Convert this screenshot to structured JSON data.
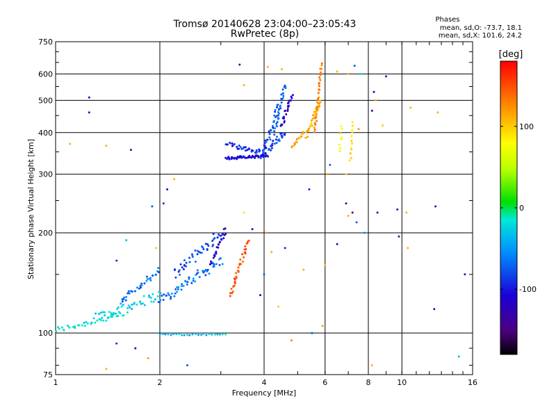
{
  "chart_data": {
    "type": "scatter",
    "title": "Tromsø 20140628 23:04:00–23:05:43",
    "subtitle": "RwPretec (8p)",
    "xlabel": "Frequency [MHz]",
    "ylabel": "Stationary phase Virtual Height [km]",
    "xscale": "log",
    "yscale": "log",
    "xlim": [
      1,
      16
    ],
    "ylim": [
      75,
      750
    ],
    "x_ticks": [
      1,
      2,
      4,
      6,
      8,
      10,
      16
    ],
    "x_tick_labels": [
      "1",
      "2",
      "4",
      "6",
      "8",
      "10",
      "16"
    ],
    "x_gridlines": [
      2,
      4,
      6,
      8,
      10
    ],
    "y_ticks": [
      75,
      100,
      200,
      300,
      400,
      500,
      600,
      750
    ],
    "y_tick_labels": [
      "75",
      "100",
      "200",
      "300",
      "400",
      "500",
      "600",
      "750"
    ],
    "y_gridlines": [
      100,
      200,
      300,
      400,
      500,
      600
    ],
    "grid": true,
    "stats": {
      "heading": "Phases",
      "line1": "mean, sd,O: -73.7, 18.1",
      "line2": "mean, sd,X: 101.6, 24.2"
    },
    "colorbar": {
      "label": "[deg]",
      "range": [
        -180,
        180
      ],
      "ticks": [
        100,
        0,
        -100
      ],
      "tick_labels": [
        "100",
        "0",
        "-100"
      ]
    },
    "traces": [
      {
        "f_start": 1.0,
        "f_end": 1.6,
        "h_start": 102,
        "h_end": 114,
        "phase": -45,
        "n": 40,
        "spread": 0.04
      },
      {
        "f_start": 1.3,
        "f_end": 2.0,
        "h_start": 112,
        "h_end": 130,
        "phase": -55,
        "n": 45,
        "spread": 0.06
      },
      {
        "f_start": 1.55,
        "f_end": 2.0,
        "h_start": 125,
        "h_end": 155,
        "phase": -85,
        "n": 35,
        "spread": 0.05
      },
      {
        "f_start": 2.0,
        "f_end": 3.0,
        "h_start": 125,
        "h_end": 165,
        "phase": -80,
        "n": 60,
        "spread": 0.06
      },
      {
        "f_start": 2.2,
        "f_end": 3.0,
        "h_start": 150,
        "h_end": 200,
        "phase": -95,
        "n": 45,
        "spread": 0.06
      },
      {
        "f_start": 2.8,
        "f_end": 3.1,
        "h_start": 160,
        "h_end": 205,
        "phase": -115,
        "n": 25,
        "spread": 0.03
      },
      {
        "f_start": 2.0,
        "f_end": 3.1,
        "h_start": 99,
        "h_end": 99,
        "phase": -60,
        "n": 25,
        "spread": 0.01
      },
      {
        "f_start": 3.2,
        "f_end": 3.6,
        "h_start": 130,
        "h_end": 190,
        "phase": 150,
        "n": 35,
        "spread": 0.03
      },
      {
        "f_start": 3.1,
        "f_end": 4.1,
        "h_start": 335,
        "h_end": 340,
        "phase": -110,
        "n": 60,
        "spread": 0.02
      },
      {
        "f_start": 3.1,
        "f_end": 3.9,
        "h_start": 370,
        "h_end": 350,
        "phase": -100,
        "n": 35,
        "spread": 0.03
      },
      {
        "f_start": 3.9,
        "f_end": 4.6,
        "h_start": 340,
        "h_end": 400,
        "phase": -95,
        "n": 40,
        "spread": 0.04
      },
      {
        "f_start": 4.0,
        "f_end": 4.4,
        "h_start": 350,
        "h_end": 480,
        "phase": -90,
        "n": 30,
        "spread": 0.04
      },
      {
        "f_start": 4.3,
        "f_end": 4.6,
        "h_start": 400,
        "h_end": 560,
        "phase": -85,
        "n": 30,
        "spread": 0.03
      },
      {
        "f_start": 4.5,
        "f_end": 4.8,
        "h_start": 420,
        "h_end": 520,
        "phase": -120,
        "n": 25,
        "spread": 0.03
      },
      {
        "f_start": 4.8,
        "f_end": 5.2,
        "h_start": 360,
        "h_end": 400,
        "phase": 120,
        "n": 15,
        "spread": 0.02
      },
      {
        "f_start": 5.3,
        "f_end": 5.8,
        "h_start": 390,
        "h_end": 500,
        "phase": 110,
        "n": 35,
        "spread": 0.03
      },
      {
        "f_start": 5.6,
        "f_end": 5.85,
        "h_start": 400,
        "h_end": 640,
        "phase": 130,
        "n": 40,
        "spread": 0.02
      },
      {
        "f_start": 7.1,
        "f_end": 7.2,
        "h_start": 330,
        "h_end": 430,
        "phase": 95,
        "n": 12,
        "spread": 0.02
      },
      {
        "f_start": 6.6,
        "f_end": 6.7,
        "h_start": 350,
        "h_end": 420,
        "phase": 80,
        "n": 8,
        "spread": 0.02
      }
    ],
    "scatter": [
      {
        "x": 1.25,
        "y": 510,
        "phase": -120
      },
      {
        "x": 1.25,
        "y": 460,
        "phase": -120
      },
      {
        "x": 1.1,
        "y": 370,
        "phase": 110
      },
      {
        "x": 1.4,
        "y": 365,
        "phase": 110
      },
      {
        "x": 1.65,
        "y": 355,
        "phase": -140
      },
      {
        "x": 1.9,
        "y": 240,
        "phase": -90
      },
      {
        "x": 2.05,
        "y": 245,
        "phase": -100
      },
      {
        "x": 2.1,
        "y": 270,
        "phase": -110
      },
      {
        "x": 2.2,
        "y": 290,
        "phase": 110
      },
      {
        "x": 1.5,
        "y": 165,
        "phase": -100
      },
      {
        "x": 1.6,
        "y": 190,
        "phase": -60
      },
      {
        "x": 1.95,
        "y": 180,
        "phase": 40
      },
      {
        "x": 1.4,
        "y": 78,
        "phase": 110
      },
      {
        "x": 1.85,
        "y": 84,
        "phase": 120
      },
      {
        "x": 2.4,
        "y": 80,
        "phase": -90
      },
      {
        "x": 1.5,
        "y": 93,
        "phase": -100
      },
      {
        "x": 1.7,
        "y": 90,
        "phase": -110
      },
      {
        "x": 3.5,
        "y": 230,
        "phase": 60
      },
      {
        "x": 3.7,
        "y": 205,
        "phase": -120
      },
      {
        "x": 3.4,
        "y": 640,
        "phase": -140
      },
      {
        "x": 3.5,
        "y": 555,
        "phase": 110
      },
      {
        "x": 4.1,
        "y": 630,
        "phase": 110
      },
      {
        "x": 4.5,
        "y": 620,
        "phase": 110
      },
      {
        "x": 4.05,
        "y": 200,
        "phase": 130
      },
      {
        "x": 4.0,
        "y": 150,
        "phase": -90
      },
      {
        "x": 4.2,
        "y": 175,
        "phase": 110
      },
      {
        "x": 4.4,
        "y": 120,
        "phase": 100
      },
      {
        "x": 4.6,
        "y": 180,
        "phase": -100
      },
      {
        "x": 3.9,
        "y": 130,
        "phase": -140
      },
      {
        "x": 5.2,
        "y": 155,
        "phase": 110
      },
      {
        "x": 4.8,
        "y": 95,
        "phase": 130
      },
      {
        "x": 5.5,
        "y": 100,
        "phase": -90
      },
      {
        "x": 5.9,
        "y": 105,
        "phase": 120
      },
      {
        "x": 6.0,
        "y": 160,
        "phase": 110
      },
      {
        "x": 5.4,
        "y": 270,
        "phase": -100
      },
      {
        "x": 6.2,
        "y": 320,
        "phase": -90
      },
      {
        "x": 6.5,
        "y": 185,
        "phase": -110
      },
      {
        "x": 6.9,
        "y": 245,
        "phase": -130
      },
      {
        "x": 7.0,
        "y": 225,
        "phase": 110
      },
      {
        "x": 7.2,
        "y": 230,
        "phase": -140
      },
      {
        "x": 7.4,
        "y": 215,
        "phase": -90
      },
      {
        "x": 7.8,
        "y": 200,
        "phase": -80
      },
      {
        "x": 8.5,
        "y": 230,
        "phase": -140
      },
      {
        "x": 9.7,
        "y": 235,
        "phase": -140
      },
      {
        "x": 9.8,
        "y": 195,
        "phase": -150
      },
      {
        "x": 10.3,
        "y": 230,
        "phase": 110
      },
      {
        "x": 10.4,
        "y": 180,
        "phase": 110
      },
      {
        "x": 12.5,
        "y": 240,
        "phase": -110
      },
      {
        "x": 15.2,
        "y": 150,
        "phase": -130
      },
      {
        "x": 14.6,
        "y": 85,
        "phase": -60
      },
      {
        "x": 12.4,
        "y": 118,
        "phase": -120
      },
      {
        "x": 8.2,
        "y": 465,
        "phase": -130
      },
      {
        "x": 9.0,
        "y": 590,
        "phase": -140
      },
      {
        "x": 8.8,
        "y": 420,
        "phase": 100
      },
      {
        "x": 10.6,
        "y": 475,
        "phase": 110
      },
      {
        "x": 12.7,
        "y": 460,
        "phase": 110
      },
      {
        "x": 7.0,
        "y": 600,
        "phase": 110
      },
      {
        "x": 7.3,
        "y": 635,
        "phase": -90
      },
      {
        "x": 7.6,
        "y": 600,
        "phase": -50
      },
      {
        "x": 8.3,
        "y": 530,
        "phase": -120
      },
      {
        "x": 7.5,
        "y": 410,
        "phase": 120
      },
      {
        "x": 8.4,
        "y": 500,
        "phase": 110
      },
      {
        "x": 6.5,
        "y": 610,
        "phase": 110
      },
      {
        "x": 6.9,
        "y": 300,
        "phase": 100
      },
      {
        "x": 8.2,
        "y": 80,
        "phase": 110
      },
      {
        "x": 6.1,
        "y": 300,
        "phase": 120
      }
    ]
  }
}
